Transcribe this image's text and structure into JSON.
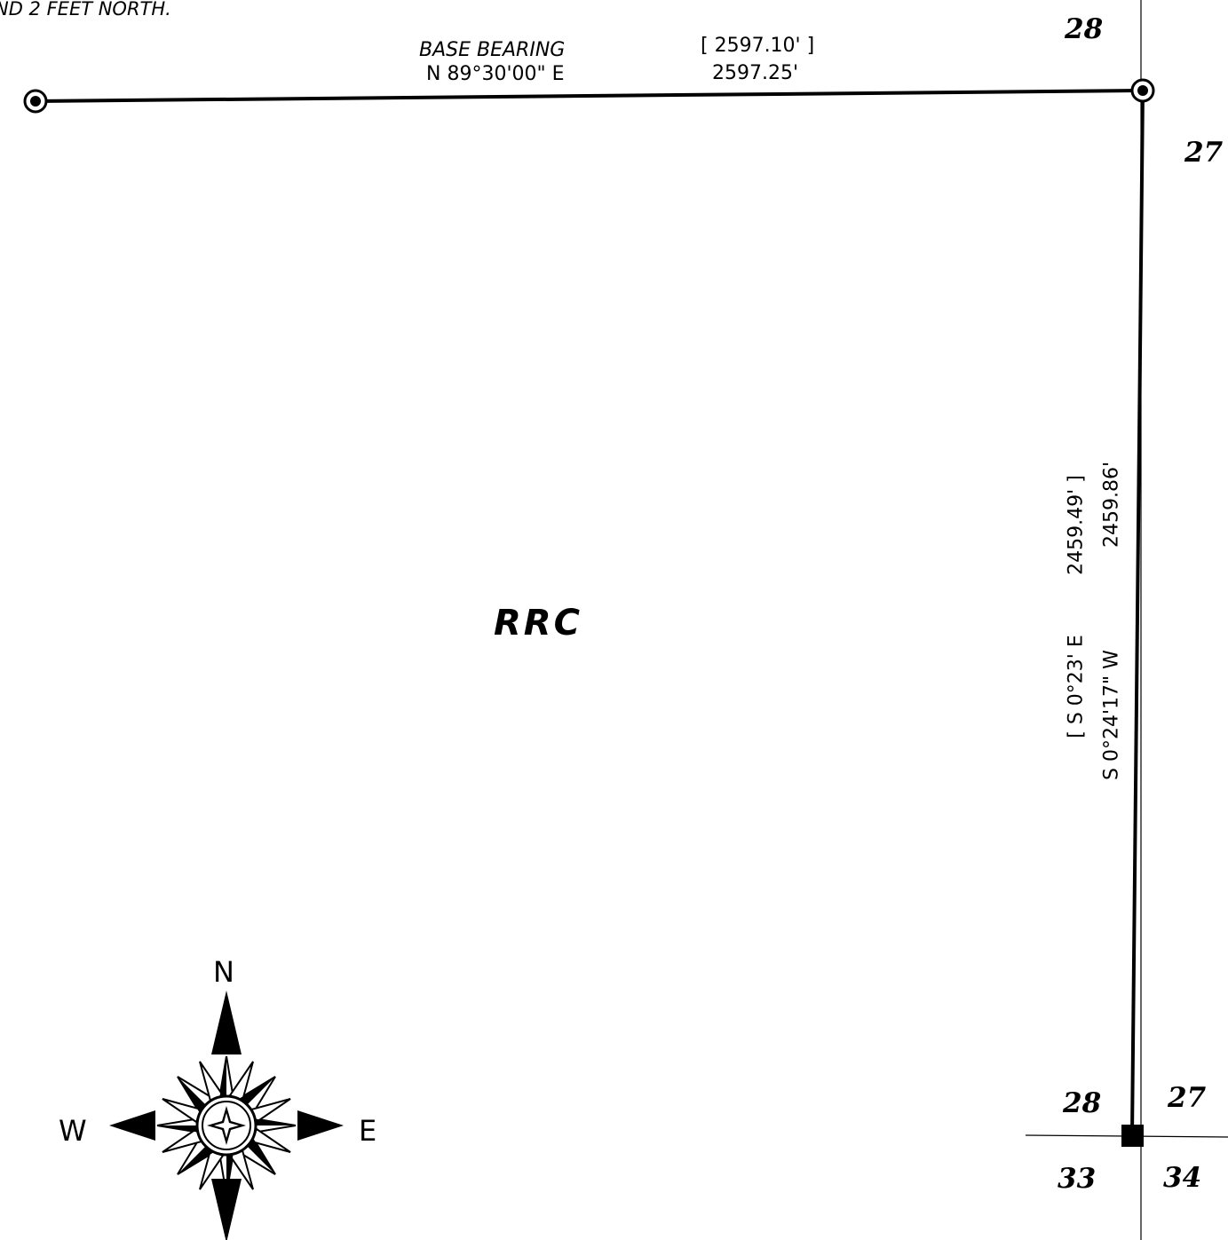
{
  "plat": {
    "note_fragment": "ND 2 FEET NORTH.",
    "base_line": {
      "label": "BASE BEARING",
      "bearing": "N 89°30'00\" E",
      "record_distance": "[ 2597.10' ]",
      "measured_distance": "2597.25'"
    },
    "east_line": {
      "record_bearing": "[ S 0°23' E",
      "record_distance": "2459.49' ]",
      "measured_bearing": "S 0°24'17\" W",
      "measured_distance": "2459.86'"
    },
    "parcel_label": "RRC",
    "sections": {
      "top_left": "28",
      "top_right": "27",
      "bottom_nw": "28",
      "bottom_ne": "27",
      "bottom_sw": "33",
      "bottom_se": "34"
    },
    "compass": {
      "north": "N",
      "west": "W",
      "east": "E",
      "icon": "compass-rose-icon"
    },
    "monuments": {
      "found_monument_icon": "circle-dot-icon",
      "section_corner_icon": "filled-square-icon"
    },
    "colors": {
      "line": "#000000",
      "background": "#ffffff"
    }
  }
}
